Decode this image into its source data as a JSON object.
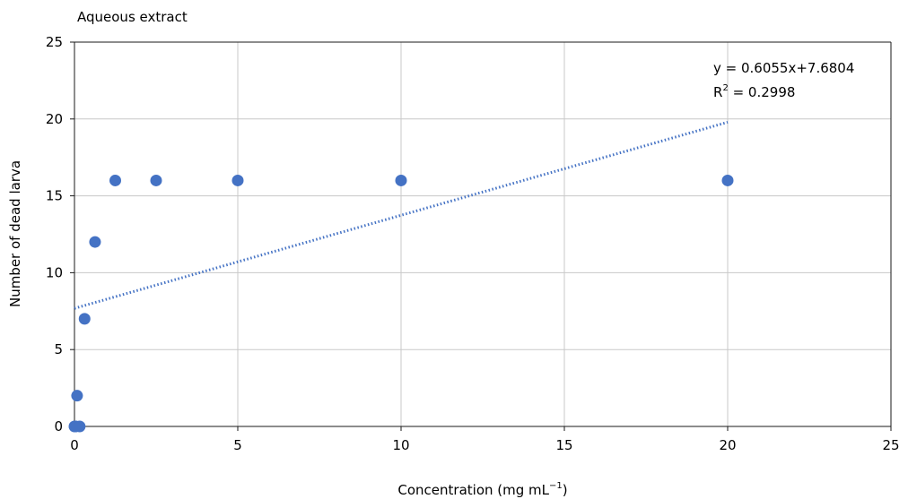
{
  "chart_data": {
    "type": "scatter",
    "title": "Aqueous extract",
    "xlabel": "Concentration (mg mL",
    "xlabel_sup": "−1",
    "xlabel_end": ")",
    "ylabel": "Number of dead larva",
    "xlim": [
      0,
      25
    ],
    "ylim": [
      0,
      25
    ],
    "xticks": [
      0,
      5,
      10,
      15,
      20,
      25
    ],
    "yticks": [
      0,
      5,
      10,
      15,
      20,
      25
    ],
    "grid": true,
    "series": [
      {
        "color": "#4472c4",
        "points": [
          {
            "x": 0,
            "y": 0
          },
          {
            "x": 0.02,
            "y": 0
          },
          {
            "x": 0.04,
            "y": 0
          },
          {
            "x": 0.08,
            "y": 2
          },
          {
            "x": 0.16,
            "y": 0
          },
          {
            "x": 0.31,
            "y": 7
          },
          {
            "x": 0.63,
            "y": 12
          },
          {
            "x": 1.25,
            "y": 16
          },
          {
            "x": 2.5,
            "y": 16
          },
          {
            "x": 5,
            "y": 16
          },
          {
            "x": 10,
            "y": 16
          },
          {
            "x": 20,
            "y": 16
          }
        ]
      }
    ],
    "trendline": {
      "type": "linear",
      "slope": 0.6055,
      "intercept": 7.6804,
      "x_range": [
        0,
        20
      ],
      "style": "dotted",
      "color": "#4472c4",
      "equation": "y = 0.6055x+7.6804",
      "r2_prefix": "R",
      "r2_sup": "2",
      "r2_value": " = 0.2998"
    }
  }
}
